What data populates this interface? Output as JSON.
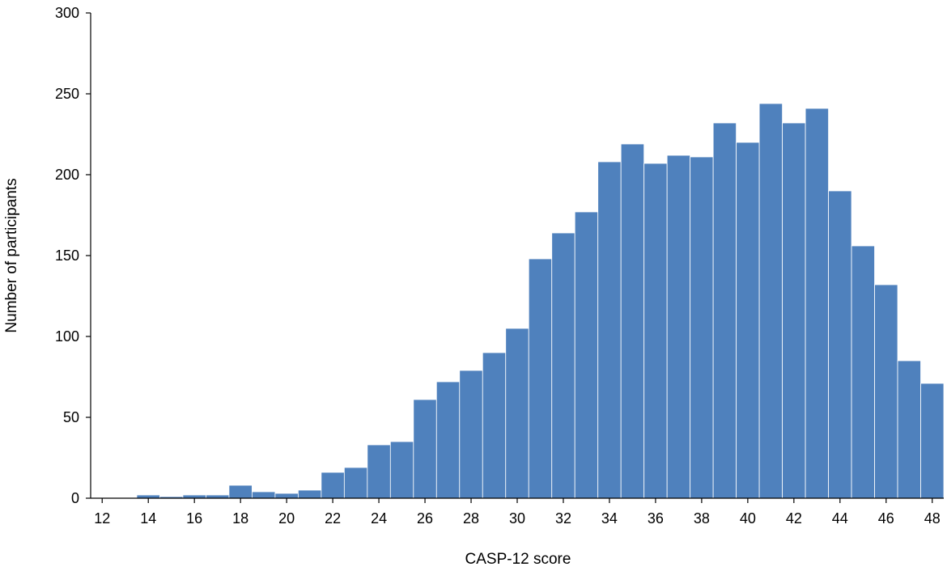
{
  "chart_data": {
    "type": "bar",
    "title": "",
    "xlabel": "CASP-12 score",
    "ylabel": "Number of participants",
    "xlim": [
      12,
      48
    ],
    "ylim": [
      0,
      300
    ],
    "x_ticks": [
      12,
      14,
      16,
      18,
      20,
      22,
      24,
      26,
      28,
      30,
      32,
      34,
      36,
      38,
      40,
      42,
      44,
      46,
      48
    ],
    "y_ticks": [
      0,
      50,
      100,
      150,
      200,
      250,
      300
    ],
    "grid": false,
    "bar_color": "#4f81bd",
    "bars": [
      {
        "x": 12,
        "value": 0
      },
      {
        "x": 13,
        "value": 0
      },
      {
        "x": 14,
        "value": 2
      },
      {
        "x": 15,
        "value": 1
      },
      {
        "x": 16,
        "value": 2
      },
      {
        "x": 17,
        "value": 2
      },
      {
        "x": 18,
        "value": 8
      },
      {
        "x": 19,
        "value": 4
      },
      {
        "x": 20,
        "value": 3
      },
      {
        "x": 21,
        "value": 5
      },
      {
        "x": 22,
        "value": 16
      },
      {
        "x": 23,
        "value": 19
      },
      {
        "x": 24,
        "value": 33
      },
      {
        "x": 25,
        "value": 35
      },
      {
        "x": 26,
        "value": 61
      },
      {
        "x": 27,
        "value": 72
      },
      {
        "x": 28,
        "value": 79
      },
      {
        "x": 29,
        "value": 90
      },
      {
        "x": 30,
        "value": 105
      },
      {
        "x": 31,
        "value": 148
      },
      {
        "x": 32,
        "value": 164
      },
      {
        "x": 33,
        "value": 177
      },
      {
        "x": 34,
        "value": 208
      },
      {
        "x": 35,
        "value": 219
      },
      {
        "x": 36,
        "value": 207
      },
      {
        "x": 37,
        "value": 212
      },
      {
        "x": 38,
        "value": 211
      },
      {
        "x": 39,
        "value": 232
      },
      {
        "x": 40,
        "value": 220
      },
      {
        "x": 41,
        "value": 244
      },
      {
        "x": 42,
        "value": 232
      },
      {
        "x": 43,
        "value": 241
      },
      {
        "x": 44,
        "value": 190
      },
      {
        "x": 45,
        "value": 156
      },
      {
        "x": 46,
        "value": 132
      },
      {
        "x": 47,
        "value": 85
      },
      {
        "x": 48,
        "value": 71
      }
    ]
  }
}
